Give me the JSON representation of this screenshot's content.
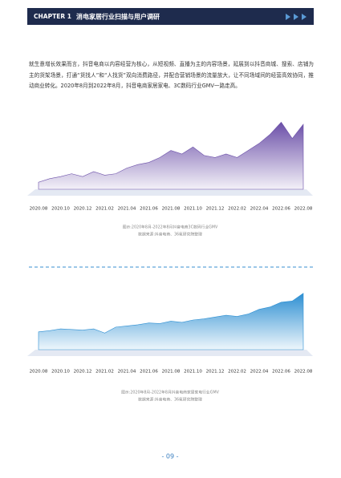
{
  "header": {
    "chapter": "CHAPTER 1",
    "title": "消电家居行业扫描与用户调研"
  },
  "body": {
    "paragraph": "就生意增长效果而言，抖音电商以内容经营为核心，从短视频、直播为主的内容场景，延展到以抖音商城、搜索、店铺为主的货架场景，打通“货找人”和“人找货”双向消费路径，并配合营销场景的流量放大，让不同场域间的经营高效协同，推动商业转化。2020年8月到2022年8月，抖音电商家居家电、3C数码行业GMV一路走高。"
  },
  "chart_data": [
    {
      "type": "area",
      "color": "#6b4fa8",
      "ylim": [
        0,
        100
      ],
      "categories": [
        "2020.08",
        null,
        "2020.10",
        null,
        "2020.12",
        null,
        "2021.02",
        null,
        "2021.04",
        null,
        "2021.06",
        null,
        "2021.08",
        null,
        "2021.10",
        null,
        "2021.12",
        null,
        "2022.02",
        null,
        "2022.04",
        null,
        "2022.06",
        null,
        "2022.08"
      ],
      "values": [
        10,
        15,
        18,
        22,
        18,
        25,
        20,
        22,
        30,
        35,
        38,
        45,
        55,
        50,
        60,
        48,
        45,
        50,
        45,
        55,
        65,
        78,
        95,
        72,
        92
      ],
      "caption": "图示:2020年8月-2022年8月抖音电商3C数码行业GMV",
      "source": "数据来源:抖音电商、36氪研究院整理"
    },
    {
      "type": "area",
      "color": "#2d8fd2",
      "ylim": [
        0,
        100
      ],
      "categories": [
        "2020.08",
        null,
        "2020.10",
        null,
        "2020.12",
        null,
        "2021.02",
        null,
        "2021.04",
        null,
        "2021.06",
        null,
        "2021.08",
        null,
        "2021.10",
        null,
        "2021.12",
        null,
        "2022.02",
        null,
        "2022.04",
        null,
        "2022.06",
        null,
        "2022.08"
      ],
      "values": [
        30,
        32,
        35,
        34,
        33,
        35,
        28,
        38,
        40,
        42,
        45,
        44,
        48,
        46,
        50,
        52,
        55,
        58,
        56,
        60,
        68,
        72,
        80,
        82,
        95
      ],
      "caption": "图示:2020年8月-2022年8月抖音电商家居家电行业GMV",
      "source": "数据来源:抖音电商、36氪研究院整理"
    }
  ],
  "footer": {
    "page": "- 09 -"
  }
}
